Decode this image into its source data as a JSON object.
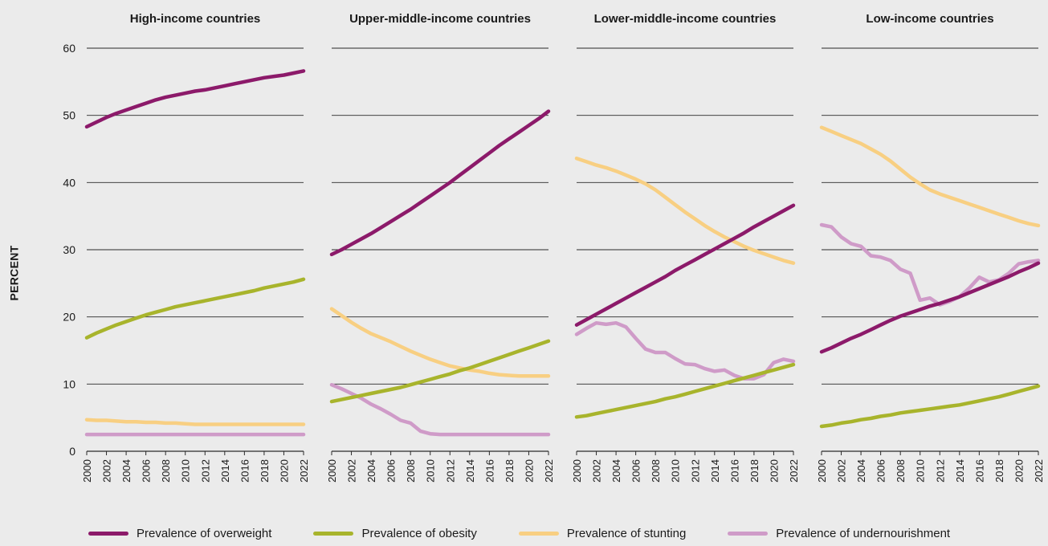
{
  "chart_data": {
    "type": "line",
    "ylabel": "PERCENT",
    "ylim": [
      0,
      60
    ],
    "yticks": [
      "0",
      "10",
      "20",
      "30",
      "40",
      "50",
      "60"
    ],
    "x": [
      2000,
      2001,
      2002,
      2003,
      2004,
      2005,
      2006,
      2007,
      2008,
      2009,
      2010,
      2011,
      2012,
      2013,
      2014,
      2015,
      2016,
      2017,
      2018,
      2019,
      2020,
      2021,
      2022
    ],
    "xticks": [
      "2000",
      "2002",
      "2004",
      "2006",
      "2008",
      "2010",
      "2012",
      "2014",
      "2016",
      "2018",
      "2020",
      "2022"
    ],
    "grid": "horizontal",
    "legend_position": "bottom",
    "series_styles": [
      {
        "name": "Prevalence of overweight",
        "color": "#8c1a6a"
      },
      {
        "name": "Prevalence of obesity",
        "color": "#a8b42c"
      },
      {
        "name": "Prevalence of stunting",
        "color": "#f8cf82"
      },
      {
        "name": "Prevalence of undernourishment",
        "color": "#cf9bc8"
      }
    ],
    "panels": [
      {
        "title": "High-income countries",
        "series": [
          {
            "name": "Prevalence of stunting",
            "values": [
              4.7,
              4.6,
              4.6,
              4.5,
              4.4,
              4.4,
              4.3,
              4.3,
              4.2,
              4.2,
              4.1,
              4.0,
              4.0,
              4.0,
              4.0,
              4.0,
              4.0,
              4.0,
              4.0,
              4.0,
              4.0,
              4.0,
              4.0
            ]
          },
          {
            "name": "Prevalence of undernourishment",
            "values": [
              2.5,
              2.5,
              2.5,
              2.5,
              2.5,
              2.5,
              2.5,
              2.5,
              2.5,
              2.5,
              2.5,
              2.5,
              2.5,
              2.5,
              2.5,
              2.5,
              2.5,
              2.5,
              2.5,
              2.5,
              2.5,
              2.5,
              2.5
            ]
          },
          {
            "name": "Prevalence of obesity",
            "values": [
              16.9,
              17.6,
              18.2,
              18.8,
              19.3,
              19.8,
              20.3,
              20.7,
              21.1,
              21.5,
              21.8,
              22.1,
              22.4,
              22.7,
              23.0,
              23.3,
              23.6,
              23.9,
              24.3,
              24.6,
              24.9,
              25.2,
              25.6
            ]
          },
          {
            "name": "Prevalence of overweight",
            "values": [
              48.3,
              49.0,
              49.7,
              50.3,
              50.8,
              51.3,
              51.8,
              52.3,
              52.7,
              53.0,
              53.3,
              53.6,
              53.8,
              54.1,
              54.4,
              54.7,
              55.0,
              55.3,
              55.6,
              55.8,
              56.0,
              56.3,
              56.6
            ]
          }
        ]
      },
      {
        "title": "Upper-middle-income countries",
        "series": [
          {
            "name": "Prevalence of stunting",
            "values": [
              21.2,
              20.2,
              19.2,
              18.3,
              17.5,
              16.9,
              16.3,
              15.6,
              14.9,
              14.3,
              13.7,
              13.2,
              12.7,
              12.4,
              12.1,
              11.9,
              11.6,
              11.4,
              11.3,
              11.2,
              11.2,
              11.2,
              11.2
            ]
          },
          {
            "name": "Prevalence of undernourishment",
            "values": [
              9.9,
              9.3,
              8.6,
              7.9,
              7.0,
              6.3,
              5.5,
              4.6,
              4.2,
              3.0,
              2.6,
              2.5,
              2.5,
              2.5,
              2.5,
              2.5,
              2.5,
              2.5,
              2.5,
              2.5,
              2.5,
              2.5,
              2.5
            ]
          },
          {
            "name": "Prevalence of obesity",
            "values": [
              7.4,
              7.7,
              8.0,
              8.3,
              8.6,
              8.9,
              9.2,
              9.5,
              9.9,
              10.3,
              10.7,
              11.1,
              11.5,
              12.0,
              12.4,
              12.9,
              13.4,
              13.9,
              14.4,
              14.9,
              15.4,
              15.9,
              16.4
            ]
          },
          {
            "name": "Prevalence of overweight",
            "values": [
              29.3,
              30.0,
              30.8,
              31.6,
              32.4,
              33.3,
              34.2,
              35.1,
              36.0,
              37.0,
              38.0,
              39.0,
              40.0,
              41.1,
              42.2,
              43.3,
              44.4,
              45.5,
              46.5,
              47.5,
              48.5,
              49.5,
              50.6
            ]
          }
        ]
      },
      {
        "title": "Lower-middle-income countries",
        "series": [
          {
            "name": "Prevalence of stunting",
            "values": [
              43.6,
              43.1,
              42.6,
              42.2,
              41.7,
              41.1,
              40.5,
              39.8,
              38.9,
              37.8,
              36.7,
              35.6,
              34.6,
              33.6,
              32.7,
              31.9,
              31.2,
              30.5,
              29.9,
              29.4,
              28.9,
              28.4,
              28.0
            ]
          },
          {
            "name": "Prevalence of undernourishment",
            "values": [
              17.4,
              18.3,
              19.1,
              18.9,
              19.1,
              18.5,
              16.8,
              15.2,
              14.7,
              14.7,
              13.8,
              13.0,
              12.9,
              12.3,
              11.9,
              12.1,
              11.3,
              10.8,
              10.8,
              11.4,
              13.2,
              13.7,
              13.4
            ]
          },
          {
            "name": "Prevalence of obesity",
            "values": [
              5.1,
              5.3,
              5.6,
              5.9,
              6.2,
              6.5,
              6.8,
              7.1,
              7.4,
              7.8,
              8.1,
              8.5,
              8.9,
              9.3,
              9.7,
              10.1,
              10.5,
              10.9,
              11.3,
              11.7,
              12.1,
              12.5,
              12.9
            ]
          },
          {
            "name": "Prevalence of overweight",
            "values": [
              18.8,
              19.6,
              20.4,
              21.2,
              22.0,
              22.8,
              23.6,
              24.4,
              25.2,
              26.0,
              26.9,
              27.7,
              28.5,
              29.3,
              30.1,
              30.9,
              31.7,
              32.5,
              33.4,
              34.2,
              35.0,
              35.8,
              36.6
            ]
          }
        ]
      },
      {
        "title": "Low-income countries",
        "series": [
          {
            "name": "Prevalence of stunting",
            "values": [
              48.2,
              47.6,
              47.0,
              46.4,
              45.8,
              45.0,
              44.2,
              43.2,
              42.0,
              40.8,
              39.8,
              38.9,
              38.3,
              37.8,
              37.3,
              36.8,
              36.3,
              35.8,
              35.3,
              34.8,
              34.3,
              33.9,
              33.6
            ]
          },
          {
            "name": "Prevalence of undernourishment",
            "values": [
              33.7,
              33.4,
              31.9,
              30.9,
              30.5,
              29.1,
              28.9,
              28.4,
              27.1,
              26.5,
              22.5,
              22.8,
              21.8,
              22.3,
              23.0,
              24.3,
              25.9,
              25.2,
              25.5,
              26.5,
              27.9,
              28.2,
              28.4
            ]
          },
          {
            "name": "Prevalence of obesity",
            "values": [
              3.7,
              3.9,
              4.2,
              4.4,
              4.7,
              4.9,
              5.2,
              5.4,
              5.7,
              5.9,
              6.1,
              6.3,
              6.5,
              6.7,
              6.9,
              7.2,
              7.5,
              7.8,
              8.1,
              8.5,
              8.9,
              9.3,
              9.7
            ]
          },
          {
            "name": "Prevalence of overweight",
            "values": [
              14.8,
              15.4,
              16.1,
              16.8,
              17.4,
              18.1,
              18.8,
              19.5,
              20.1,
              20.6,
              21.1,
              21.6,
              22.0,
              22.5,
              23.0,
              23.6,
              24.2,
              24.8,
              25.4,
              26.0,
              26.7,
              27.3,
              28.0
            ]
          }
        ]
      }
    ]
  }
}
